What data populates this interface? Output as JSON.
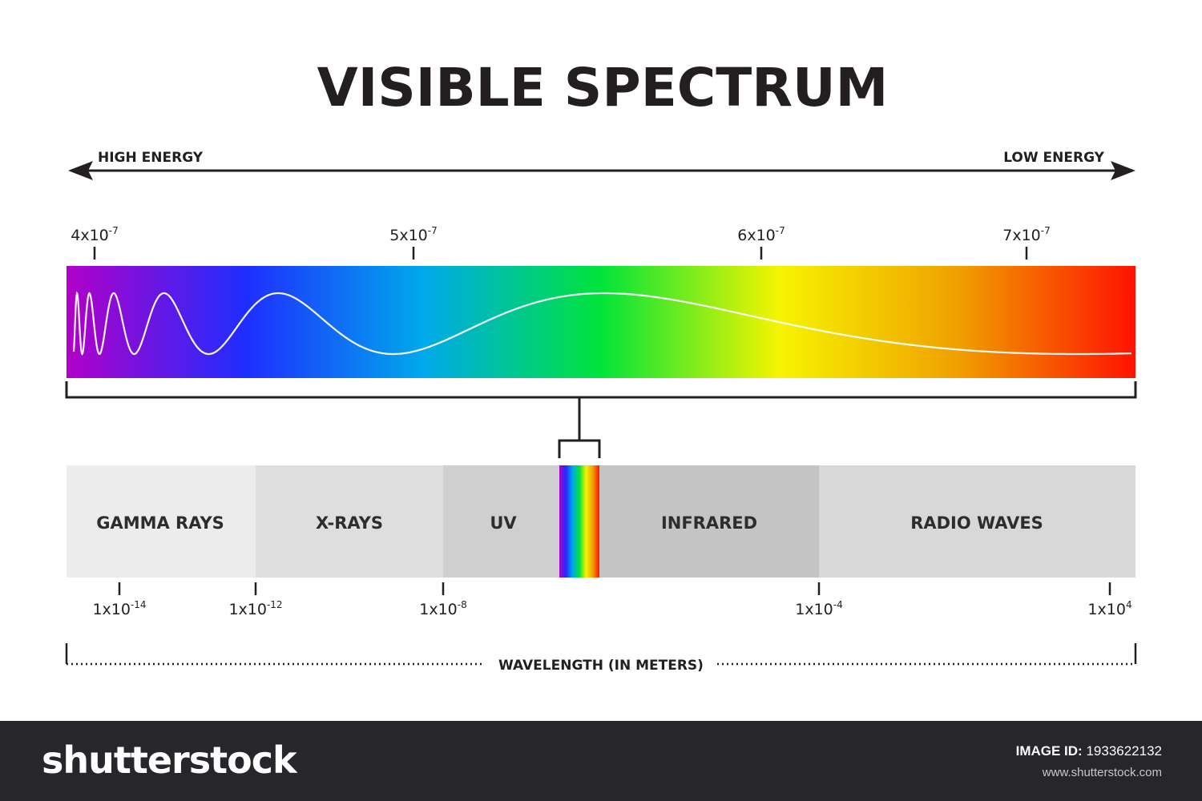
{
  "title": "VISIBLE SPECTRUM",
  "energy": {
    "left": "HIGH ENERGY",
    "right": "LOW ENERGY"
  },
  "visible_ticks": [
    {
      "mantissa": "4x10",
      "exp": "-7"
    },
    {
      "mantissa": "5x10",
      "exp": "-7"
    },
    {
      "mantissa": "6x10",
      "exp": "-7"
    },
    {
      "mantissa": "7x10",
      "exp": "-7"
    }
  ],
  "bands": [
    {
      "label": "GAMMA RAYS",
      "color": "#ececec"
    },
    {
      "label": "X-RAYS",
      "color": "#dedede"
    },
    {
      "label": "UV",
      "color": "#cfcfcf"
    },
    {
      "label": "INFRARED",
      "color": "#c4c4c4"
    },
    {
      "label": "RADIO WAVES",
      "color": "#d8d8d8"
    }
  ],
  "em_ticks": [
    {
      "mantissa": "1x10",
      "exp": "-14"
    },
    {
      "mantissa": "1x10",
      "exp": "-12"
    },
    {
      "mantissa": "1x10",
      "exp": "-8"
    },
    {
      "mantissa": "1x10",
      "exp": "-4"
    },
    {
      "mantissa": "1x10",
      "exp": "4"
    }
  ],
  "axis_label": "WAVELENGTH (IN METERS)",
  "spectrum_colors": [
    "#b100c8",
    "#1f2dff",
    "#00a8ec",
    "#00e43a",
    "#f6f400",
    "#f0a000",
    "#ff1200"
  ],
  "footer": {
    "logo": "shutterstock",
    "image_id_label": "IMAGE ID:",
    "image_id": "1933622132",
    "url": "www.shutterstock.com"
  }
}
